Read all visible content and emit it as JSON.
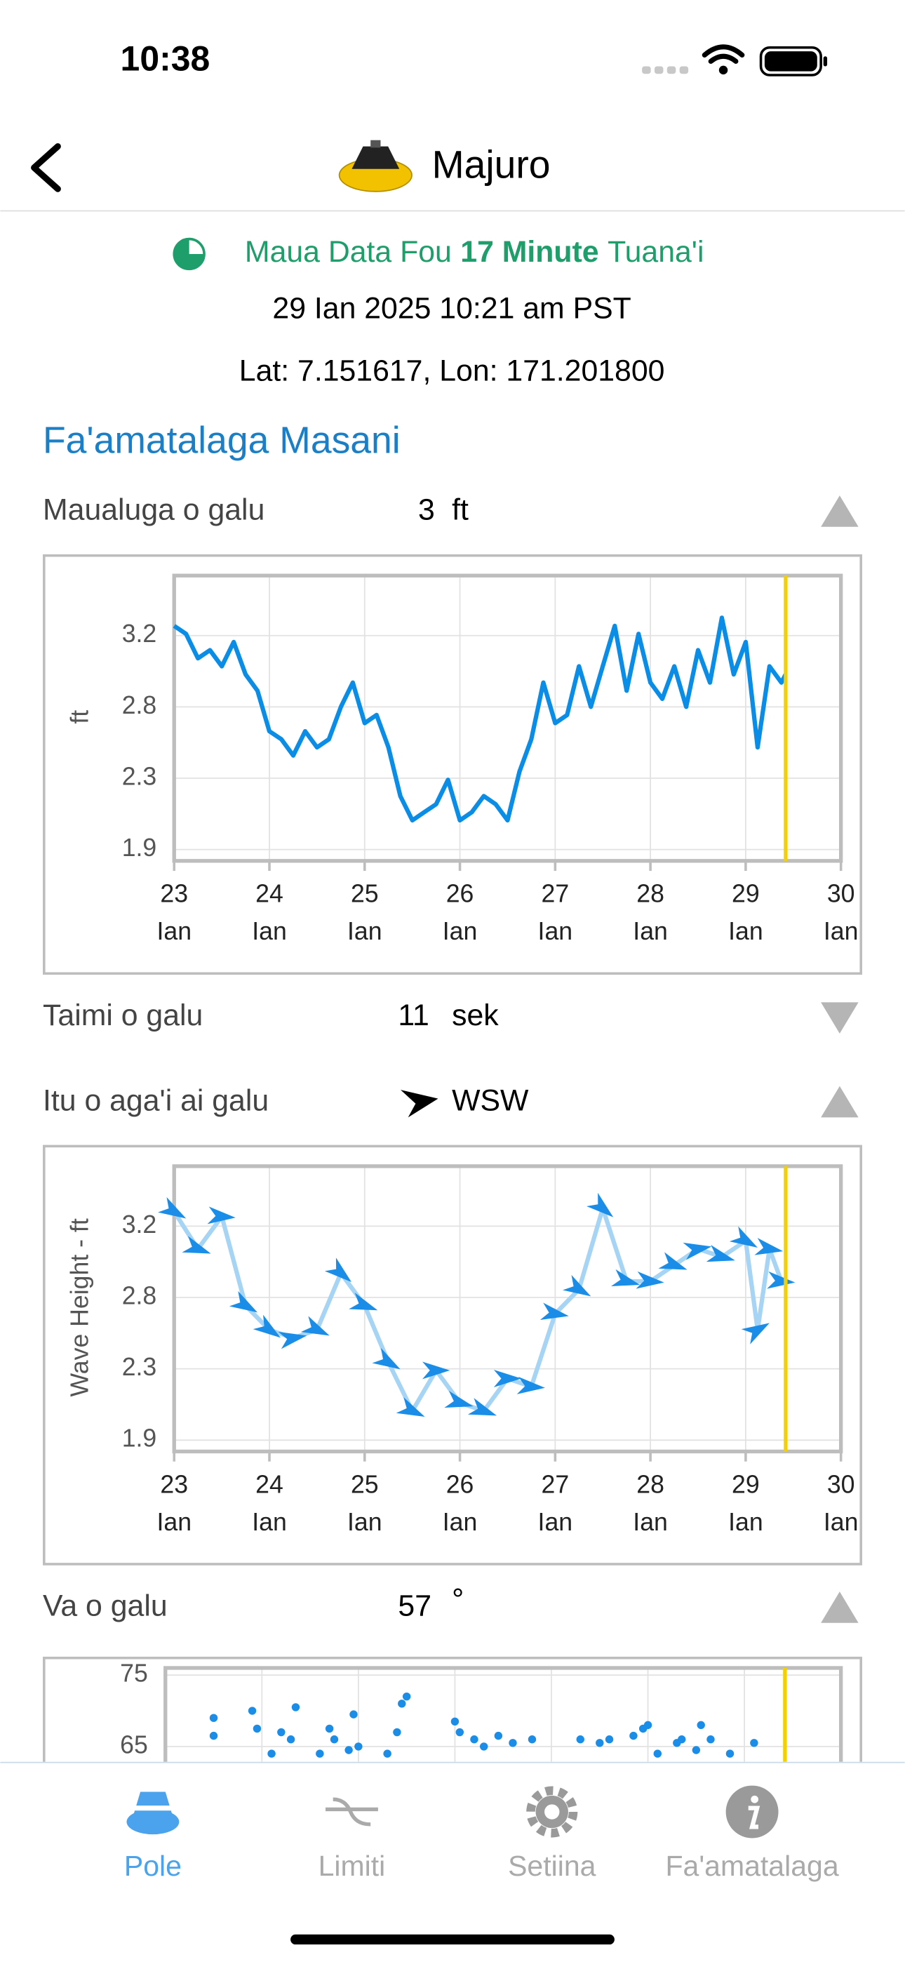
{
  "status_bar": {
    "time": "10:38"
  },
  "header": {
    "title": "Majuro"
  },
  "info": {
    "status_prefix": "Maua Data Fou",
    "status_age": "17 Minute",
    "status_suffix": "Tuana'i",
    "timestamp": "29 Ian 2025 10:21 am PST",
    "location": "Lat: 7.151617, Lon: 171.201800"
  },
  "section_title": "Fa'amatalaga Masani",
  "rows": [
    {
      "label": "Maualuga o galu",
      "value": 3,
      "unit": "ft"
    },
    {
      "label": "Taimi o galu",
      "value": 11,
      "unit": "sek"
    },
    {
      "label": "Itu o aga'i ai galu",
      "value": "WSW"
    },
    {
      "label": "Va o galu",
      "value": 57,
      "unit": "°"
    }
  ],
  "chart_data": [
    {
      "type": "line",
      "y_label": "ft",
      "color": "#0a8de6",
      "marker_color": "#f5d000",
      "marker_x": 29.42,
      "grid": true,
      "xlim": [
        23,
        30
      ],
      "ylim": [
        1.8,
        3.56
      ],
      "xticks": [
        {
          "value": 23,
          "label": "23 Ian"
        },
        {
          "value": 24,
          "label": "24 Ian"
        },
        {
          "value": 25,
          "label": "25 Ian"
        },
        {
          "value": 26,
          "label": "26 Ian"
        },
        {
          "value": 27,
          "label": "27 Ian"
        },
        {
          "value": 28,
          "label": "28 Ian"
        },
        {
          "value": 29,
          "label": "29 Ian"
        },
        {
          "value": 30,
          "label": "30 Ian"
        }
      ],
      "yticks": [
        {
          "value": 1.87,
          "label": "1.9"
        },
        {
          "value": 2.31,
          "label": "2.3"
        },
        {
          "value": 2.75,
          "label": "2.8"
        },
        {
          "value": 3.19,
          "label": "3.2"
        }
      ],
      "x": [
        23.0,
        23.125,
        23.25,
        23.375,
        23.5,
        23.625,
        23.75,
        23.875,
        24.0,
        24.125,
        24.25,
        24.375,
        24.5,
        24.625,
        24.75,
        24.875,
        25.0,
        25.125,
        25.25,
        25.375,
        25.5,
        25.625,
        25.75,
        25.875,
        26.0,
        26.125,
        26.25,
        26.375,
        26.5,
        26.625,
        26.75,
        26.875,
        27.0,
        27.125,
        27.25,
        27.375,
        27.5,
        27.625,
        27.75,
        27.875,
        28.0,
        28.125,
        28.25,
        28.375,
        28.5,
        28.625,
        28.75,
        28.875,
        29.0,
        29.125,
        29.25,
        29.375,
        29.42
      ],
      "values": [
        3.25,
        3.2,
        3.05,
        3.1,
        3.0,
        3.15,
        2.95,
        2.85,
        2.6,
        2.55,
        2.45,
        2.6,
        2.5,
        2.55,
        2.75,
        2.9,
        2.65,
        2.7,
        2.5,
        2.2,
        2.05,
        2.1,
        2.15,
        2.3,
        2.05,
        2.1,
        2.2,
        2.15,
        2.05,
        2.35,
        2.55,
        2.9,
        2.65,
        2.7,
        3.0,
        2.75,
        3.0,
        3.25,
        2.85,
        3.2,
        2.9,
        2.8,
        3.0,
        2.75,
        3.1,
        2.9,
        3.3,
        2.95,
        3.15,
        2.5,
        3.0,
        2.9,
        2.95
      ]
    },
    {
      "type": "arrow",
      "y_label": "Wave Height - ft",
      "line_color": "#a6d4f4",
      "color": "#1a8de9",
      "marker_color": "#f5d000",
      "marker_x": 29.42,
      "grid": true,
      "xlim": [
        23,
        30
      ],
      "ylim": [
        1.8,
        3.56
      ],
      "xticks": [
        {
          "value": 23,
          "label": "23 Ian"
        },
        {
          "value": 24,
          "label": "24 Ian"
        },
        {
          "value": 25,
          "label": "25 Ian"
        },
        {
          "value": 26,
          "label": "26 Ian"
        },
        {
          "value": 27,
          "label": "27 Ian"
        },
        {
          "value": 28,
          "label": "28 Ian"
        },
        {
          "value": 29,
          "label": "29 Ian"
        },
        {
          "value": 30,
          "label": "30 Ian"
        }
      ],
      "yticks": [
        {
          "value": 1.87,
          "label": "1.9"
        },
        {
          "value": 2.31,
          "label": "2.3"
        },
        {
          "value": 2.75,
          "label": "2.8"
        },
        {
          "value": 3.19,
          "label": "3.2"
        }
      ],
      "x": [
        23.0,
        23.25,
        23.5,
        23.75,
        24.0,
        24.25,
        24.5,
        24.75,
        25.0,
        25.25,
        25.5,
        25.75,
        26.0,
        26.25,
        26.5,
        26.75,
        27.0,
        27.25,
        27.5,
        27.75,
        28.0,
        28.25,
        28.5,
        28.75,
        29.0,
        29.125,
        29.25,
        29.375
      ],
      "values": [
        3.28,
        3.05,
        3.25,
        2.7,
        2.55,
        2.5,
        2.55,
        2.9,
        2.7,
        2.35,
        2.05,
        2.3,
        2.1,
        2.05,
        2.25,
        2.2,
        2.65,
        2.8,
        3.3,
        2.85,
        2.85,
        2.95,
        3.05,
        3.0,
        3.1,
        2.55,
        3.05,
        2.85
      ],
      "directions": [
        300,
        290,
        275,
        300,
        305,
        260,
        295,
        310,
        290,
        300,
        295,
        270,
        285,
        290,
        270,
        275,
        280,
        300,
        310,
        285,
        275,
        290,
        260,
        285,
        300,
        240,
        280,
        275
      ]
    },
    {
      "type": "scatter",
      "color": "#1a8de9",
      "marker_color": "#f5d000",
      "marker_x": 29.42,
      "grid": true,
      "xlim": [
        23,
        30
      ],
      "ylim": [
        35,
        76
      ],
      "yticks": [
        65,
        75
      ],
      "x": [
        23.5,
        23.5,
        23.9,
        23.95,
        24.1,
        24.2,
        24.3,
        24.35,
        24.6,
        24.7,
        24.75,
        24.9,
        24.95,
        25.0,
        25.3,
        25.4,
        25.45,
        25.5,
        26.0,
        26.05,
        26.2,
        26.3,
        26.45,
        26.6,
        26.8,
        27.3,
        27.5,
        27.6,
        27.85,
        27.95,
        28.0,
        28.1,
        28.3,
        28.35,
        28.5,
        28.55,
        28.65,
        28.85,
        29.1
      ],
      "values": [
        69,
        66.5,
        70,
        67.5,
        64,
        67,
        66,
        70.5,
        64,
        67.5,
        66,
        64.5,
        69.5,
        65,
        64,
        67,
        71,
        72,
        68.5,
        67,
        66,
        65,
        66.5,
        65.5,
        66,
        66,
        65.5,
        66,
        66.5,
        67.5,
        68,
        64,
        65.5,
        66,
        64.5,
        68,
        66,
        64,
        65.5
      ]
    }
  ],
  "tabs": [
    {
      "label": "Pole"
    },
    {
      "label": "Limiti"
    },
    {
      "label": "Setiina"
    },
    {
      "label": "Fa'amatalaga"
    }
  ]
}
